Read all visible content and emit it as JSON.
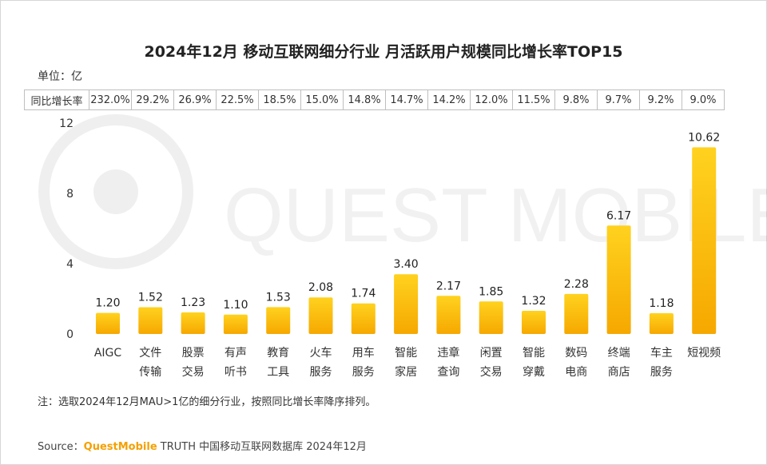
{
  "title": "2024年12月 移动互联网细分行业 月活跃用户规模同比增长率TOP15",
  "unit_label": "单位：亿",
  "growth_row_label": "同比增长率",
  "growth_rates": [
    "232.0%",
    "29.2%",
    "26.9%",
    "22.5%",
    "18.5%",
    "15.0%",
    "14.8%",
    "14.7%",
    "14.2%",
    "12.0%",
    "11.5%",
    "9.8%",
    "9.7%",
    "9.2%",
    "9.0%"
  ],
  "note": "注：选取2024年12月MAU>1亿的细分行业，按照同比增长率降序排列。",
  "source": {
    "prefix": "Source：",
    "brand": "QuestMobile",
    "rest": " TRUTH 中国移动互联网数据库 2024年12月"
  },
  "watermark_text": "QUEST MOBILE",
  "colors": {
    "bar_top": "#ffd21f",
    "bar_bottom": "#f6a800",
    "brand": "#f5a000"
  },
  "chart_data": {
    "type": "bar",
    "categories": [
      [
        "AIGC"
      ],
      [
        "文件",
        "传输"
      ],
      [
        "股票",
        "交易"
      ],
      [
        "有声",
        "听书"
      ],
      [
        "教育",
        "工具"
      ],
      [
        "火车",
        "服务"
      ],
      [
        "用车",
        "服务"
      ],
      [
        "智能",
        "家居"
      ],
      [
        "违章",
        "查询"
      ],
      [
        "闲置",
        "交易"
      ],
      [
        "智能",
        "穿戴"
      ],
      [
        "数码",
        "电商"
      ],
      [
        "终端",
        "商店"
      ],
      [
        "车主",
        "服务"
      ],
      [
        "短视频"
      ]
    ],
    "values": [
      1.2,
      1.52,
      1.23,
      1.1,
      1.53,
      2.08,
      1.74,
      3.4,
      2.17,
      1.85,
      1.32,
      2.28,
      6.17,
      1.18,
      10.62
    ],
    "value_labels": [
      "1.20",
      "1.52",
      "1.23",
      "1.10",
      "1.53",
      "2.08",
      "1.74",
      "3.40",
      "2.17",
      "1.85",
      "1.32",
      "2.28",
      "6.17",
      "1.18",
      "10.62"
    ],
    "yticks": [
      "0",
      "4",
      "8",
      "12"
    ],
    "ylim": [
      0,
      12
    ],
    "grid": false
  }
}
